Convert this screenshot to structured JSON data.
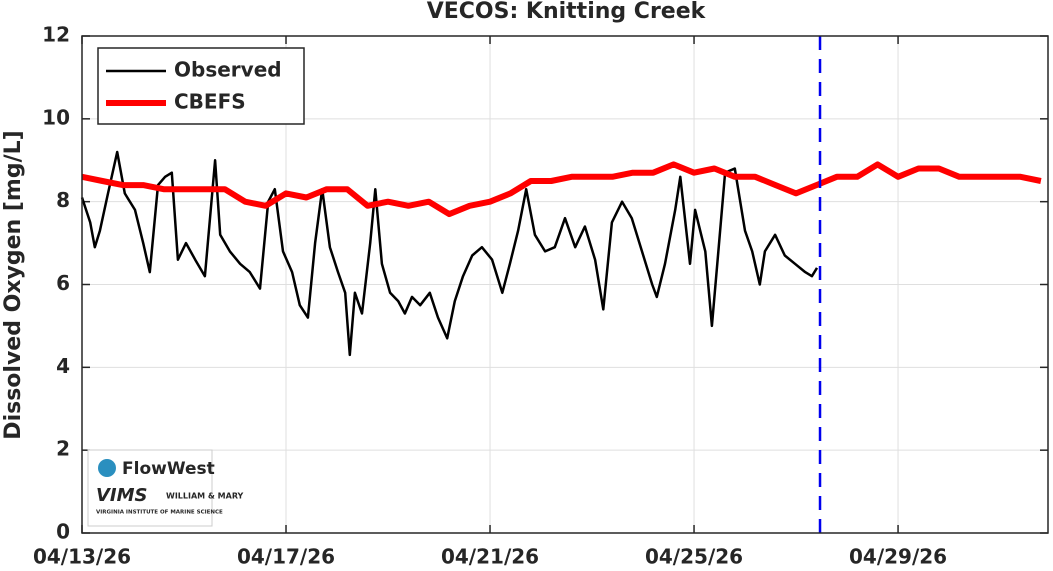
{
  "chart_data": {
    "type": "line",
    "title": "VECOS: Knitting Creek",
    "y_label": "Dissolved Oxygen [mg/L]",
    "xlim": [
      0,
      18.94
    ],
    "xticks": [
      {
        "value": 0,
        "label": "04/13/26"
      },
      {
        "value": 4,
        "label": "04/17/26"
      },
      {
        "value": 8,
        "label": "04/21/26"
      },
      {
        "value": 12,
        "label": "04/25/26"
      },
      {
        "value": 16,
        "label": "04/29/26"
      }
    ],
    "ylim": [
      0,
      12
    ],
    "yticks": [
      0,
      2,
      4,
      6,
      8,
      10,
      12
    ],
    "grid": true,
    "legend": "upper left",
    "vline": {
      "x": 14.47,
      "color": "#0000ee"
    },
    "series": [
      {
        "name": "Observed",
        "color": "#000000",
        "width": 2.5,
        "x": [
          0,
          0.16,
          0.25,
          0.35,
          0.51,
          0.69,
          0.84,
          1.04,
          1.2,
          1.33,
          1.49,
          1.63,
          1.76,
          1.88,
          2.04,
          2.22,
          2.41,
          2.61,
          2.71,
          2.9,
          3.1,
          3.29,
          3.49,
          3.65,
          3.78,
          3.94,
          4.12,
          4.27,
          4.43,
          4.57,
          4.71,
          4.86,
          5.02,
          5.16,
          5.25,
          5.35,
          5.49,
          5.65,
          5.75,
          5.88,
          6.04,
          6.2,
          6.33,
          6.47,
          6.63,
          6.82,
          6.98,
          7.16,
          7.31,
          7.47,
          7.65,
          7.84,
          8.04,
          8.24,
          8.39,
          8.55,
          8.71,
          8.88,
          9.08,
          9.27,
          9.47,
          9.67,
          9.86,
          10.06,
          10.22,
          10.39,
          10.59,
          10.78,
          10.98,
          11.18,
          11.27,
          11.43,
          11.63,
          11.73,
          11.92,
          12.02,
          12.22,
          12.35,
          12.47,
          12.61,
          12.8,
          13.0,
          13.14,
          13.29,
          13.39,
          13.59,
          13.78,
          13.98,
          14.18,
          14.31,
          14.41
        ],
        "values": [
          8.1,
          7.5,
          6.9,
          7.3,
          8.2,
          9.2,
          8.2,
          7.8,
          7.0,
          6.3,
          8.4,
          8.6,
          8.7,
          6.6,
          7.0,
          6.6,
          6.2,
          9.0,
          7.2,
          6.8,
          6.5,
          6.3,
          5.9,
          8.0,
          8.3,
          6.8,
          6.3,
          5.5,
          5.2,
          7.0,
          8.3,
          6.9,
          6.3,
          5.8,
          4.3,
          5.8,
          5.3,
          7.0,
          8.3,
          6.5,
          5.8,
          5.6,
          5.3,
          5.7,
          5.5,
          5.8,
          5.2,
          4.7,
          5.6,
          6.2,
          6.7,
          6.9,
          6.6,
          5.8,
          6.5,
          7.3,
          8.3,
          7.2,
          6.8,
          6.9,
          7.6,
          6.9,
          7.4,
          6.6,
          5.4,
          7.5,
          8.0,
          7.6,
          6.8,
          6.0,
          5.7,
          6.5,
          7.8,
          8.6,
          6.5,
          7.8,
          6.8,
          5.0,
          6.7,
          8.7,
          8.8,
          7.3,
          6.8,
          6.0,
          6.8,
          7.2,
          6.7,
          6.5,
          6.3,
          6.2,
          6.4
        ]
      },
      {
        "name": "CBEFS",
        "color": "#ff0000",
        "width": 6,
        "x": [
          0,
          0.4,
          0.8,
          1.2,
          1.6,
          2.0,
          2.4,
          2.8,
          3.2,
          3.6,
          4.0,
          4.4,
          4.8,
          5.2,
          5.6,
          6.0,
          6.4,
          6.8,
          7.2,
          7.6,
          8.0,
          8.4,
          8.8,
          9.2,
          9.6,
          10.0,
          10.4,
          10.8,
          11.2,
          11.6,
          12.0,
          12.4,
          12.8,
          13.2,
          13.6,
          14.0,
          14.4,
          14.8,
          15.2,
          15.6,
          16.0,
          16.4,
          16.8,
          17.2,
          17.6,
          18.0,
          18.4,
          18.8
        ],
        "values": [
          8.6,
          8.5,
          8.4,
          8.4,
          8.3,
          8.3,
          8.3,
          8.3,
          8.0,
          7.9,
          8.2,
          8.1,
          8.3,
          8.3,
          7.9,
          8.0,
          7.9,
          8.0,
          7.7,
          7.9,
          8.0,
          8.2,
          8.5,
          8.5,
          8.6,
          8.6,
          8.6,
          8.7,
          8.7,
          8.9,
          8.7,
          8.8,
          8.6,
          8.6,
          8.4,
          8.2,
          8.4,
          8.6,
          8.6,
          8.9,
          8.6,
          8.8,
          8.8,
          8.6,
          8.6,
          8.6,
          8.6,
          8.5
        ]
      }
    ]
  },
  "logo": {
    "brand": "FlowWest",
    "vims": "VIMS",
    "college": "WILLIAM & MARY",
    "institute": "VIRGINIA INSTITUTE OF MARINE SCIENCE"
  }
}
